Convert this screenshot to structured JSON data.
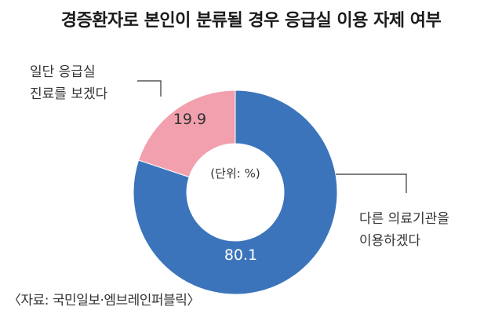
{
  "chart_data": {
    "type": "pie",
    "title": "경증환자로 본인이 분류될 경우 응급실 이용 자제 여부",
    "unit_label": "(단위: %)",
    "slices": [
      {
        "label_lines": [
          "다른 의료기관을",
          "이용하겠다"
        ],
        "value": 80.1,
        "value_label": "80.1",
        "color": "#3b74bb"
      },
      {
        "label_lines": [
          "일단 응급실",
          "진료를 보겠다"
        ],
        "value": 19.9,
        "value_label": "19.9",
        "color": "#f2a0ae"
      }
    ],
    "source": "〈자료: 국민일보·엠브레인퍼블릭〉"
  }
}
